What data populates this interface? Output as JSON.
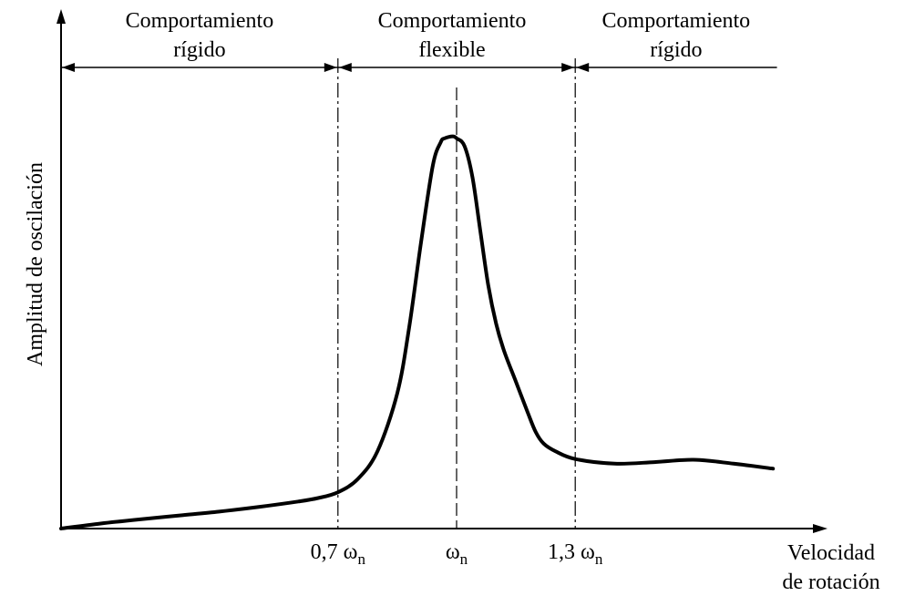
{
  "chart_data": {
    "type": "line",
    "title": "",
    "xlabel": [
      "Velocidad",
      "de rotación"
    ],
    "ylabel": "Amplitud de oscilación",
    "x_ticks": [
      {
        "x": 0.7,
        "label": "0,7 ω",
        "sub": "n"
      },
      {
        "x": 1.0,
        "label": "ω",
        "sub": "n"
      },
      {
        "x": 1.3,
        "label": "1,3 ω",
        "sub": "n"
      }
    ],
    "regions": [
      {
        "from": 0.0,
        "to": 0.7,
        "label": [
          "Comportamiento",
          "rígido"
        ]
      },
      {
        "from": 0.7,
        "to": 1.3,
        "label": [
          "Comportamiento",
          "flexible"
        ]
      },
      {
        "from": 1.3,
        "to": 1.81,
        "label": [
          "Comportamiento",
          "rígido"
        ]
      }
    ],
    "xlim": [
      0,
      1.95
    ],
    "ylim": [
      0,
      1.06
    ],
    "grid": false,
    "series": [
      {
        "x": [
          0,
          0.1,
          0.2,
          0.3,
          0.4,
          0.5,
          0.6,
          0.65,
          0.7,
          0.75,
          0.8,
          0.85,
          0.88,
          0.91,
          0.94,
          0.96,
          0.97,
          0.99,
          1.0,
          1.02,
          1.04,
          1.06,
          1.08,
          1.1,
          1.12,
          1.15,
          1.18,
          1.2,
          1.22,
          1.25,
          1.3,
          1.4,
          1.5,
          1.6,
          1.7,
          1.8
        ],
        "y": [
          0.0,
          0.013,
          0.024,
          0.034,
          0.044,
          0.056,
          0.07,
          0.079,
          0.094,
          0.128,
          0.2,
          0.35,
          0.52,
          0.74,
          0.94,
          1.0,
          1.01,
          1.015,
          1.01,
          0.99,
          0.91,
          0.77,
          0.63,
          0.53,
          0.46,
          0.38,
          0.3,
          0.25,
          0.22,
          0.2,
          0.18,
          0.168,
          0.172,
          0.178,
          0.168,
          0.155
        ]
      }
    ]
  }
}
